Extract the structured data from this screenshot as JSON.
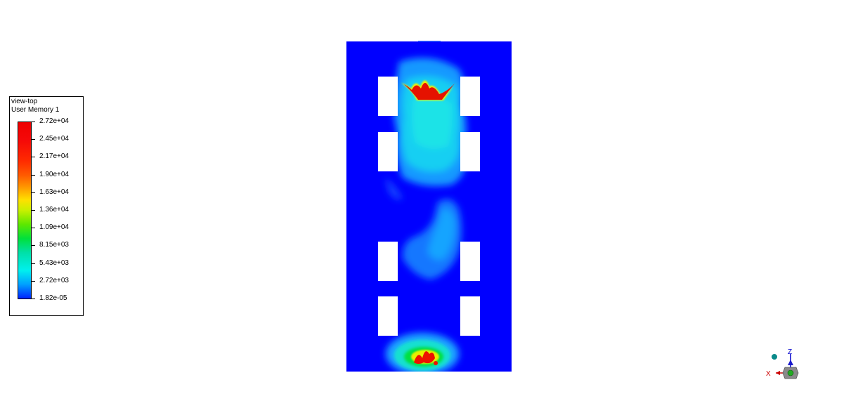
{
  "legend": {
    "view_name": "view-top",
    "variable": "User Memory 1",
    "ticks": [
      "2.72e+04",
      "2.45e+04",
      "2.17e+04",
      "1.90e+04",
      "1.63e+04",
      "1.36e+04",
      "1.09e+04",
      "8.15e+03",
      "5.43e+03",
      "2.72e+03",
      "1.82e-05"
    ]
  },
  "axes": {
    "z": "Z",
    "x": "X"
  },
  "colors": {
    "background": "#0000ff",
    "max": "#ee0000",
    "min": "#0022ff"
  }
}
